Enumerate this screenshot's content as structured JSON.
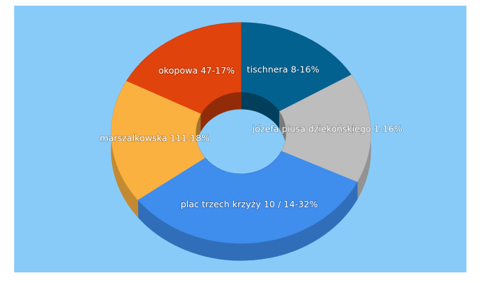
{
  "chart_data": {
    "type": "donut3d",
    "categories": [
      "tischnera 8-16%",
      "józefa piusa dziekońskiego 1-16%",
      "plac trzech krzyży 10 / 14-32%",
      "marszałkowska 111-18%",
      "okopowa 47-17%"
    ],
    "values": [
      16,
      16,
      32,
      18,
      17
    ],
    "colors": [
      "#03618f",
      "#bdbdbd",
      "#3f8ded",
      "#fbb140",
      "#e0430c"
    ]
  }
}
